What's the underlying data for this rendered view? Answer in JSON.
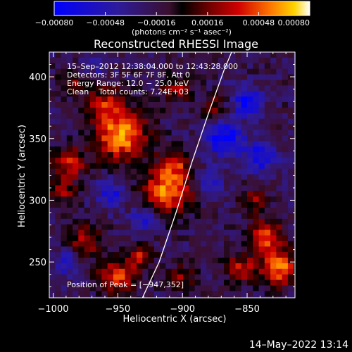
{
  "chart_data": {
    "type": "heatmap",
    "title": "Reconstructed RHESSI Image",
    "xlabel": "Heliocentric X (arcsec)",
    "ylabel": "Heliocentric Y (arcsec)",
    "xlim": [
      -1003,
      -813
    ],
    "ylim": [
      221,
      420
    ],
    "x_ticks": [
      -1000,
      -950,
      -900,
      -850
    ],
    "x_tick_labels": [
      "−1000",
      "−950",
      "−900",
      "−850"
    ],
    "y_ticks": [
      250,
      300,
      350,
      400
    ],
    "y_tick_labels": [
      "250",
      "300",
      "350",
      "400"
    ],
    "colorbar": {
      "range": [
        -0.0008,
        0.0008
      ],
      "ticks": [
        -0.0008,
        -0.00048,
        -0.00016,
        0.00016,
        0.00048,
        0.0008
      ],
      "tick_labels": [
        "−0.00080",
        "−0.00048",
        "−0.00016",
        "0.00016",
        "0.00048",
        "0.00080"
      ],
      "unit_label": "(photons cm⁻² s⁻¹ asec⁻²)"
    },
    "annotations": {
      "time": "15–Sep–2012 12:38:04.000 to 12:43:28.000",
      "detectors": "Detectors: 3F 5F 6F 7F 8F, Att 0",
      "energy": "Energy Range: 12.0 − 25.0 keV",
      "clean": "Clean    Total counts: 7.24E+03",
      "peak": "Position of Peak = [−947,352]"
    },
    "peak": [
      -947,
      352
    ],
    "limb_curve": {
      "points": [
        [
          -931,
          221
        ],
        [
          -918,
          250
        ],
        [
          -905,
          290
        ],
        [
          -893,
          330
        ],
        [
          -880,
          370
        ],
        [
          -868,
          405
        ],
        [
          -862,
          420
        ]
      ]
    },
    "hot_spots": [
      {
        "x": -947,
        "y": 352,
        "r": 14,
        "amp": 0.0008
      },
      {
        "x": -960,
        "y": 378,
        "r": 10,
        "amp": 0.00045
      },
      {
        "x": -912,
        "y": 308,
        "r": 13,
        "amp": 0.00075
      },
      {
        "x": -905,
        "y": 330,
        "r": 8,
        "amp": 0.00045
      },
      {
        "x": -988,
        "y": 330,
        "r": 9,
        "amp": 0.00055
      },
      {
        "x": -993,
        "y": 308,
        "r": 7,
        "amp": 0.0004
      },
      {
        "x": -975,
        "y": 268,
        "r": 9,
        "amp": 0.00045
      },
      {
        "x": -950,
        "y": 238,
        "r": 10,
        "amp": 0.0006
      },
      {
        "x": -932,
        "y": 255,
        "r": 7,
        "amp": 0.00045
      },
      {
        "x": -900,
        "y": 238,
        "r": 7,
        "amp": 0.0004
      },
      {
        "x": -835,
        "y": 270,
        "r": 9,
        "amp": 0.00065
      },
      {
        "x": -825,
        "y": 245,
        "r": 10,
        "amp": 0.0007
      },
      {
        "x": -855,
        "y": 245,
        "r": 8,
        "amp": 0.0005
      },
      {
        "x": -845,
        "y": 300,
        "r": 7,
        "amp": 0.0004
      },
      {
        "x": -905,
        "y": 390,
        "r": 8,
        "amp": 0.0004
      },
      {
        "x": -875,
        "y": 375,
        "r": 7,
        "amp": 0.00035
      },
      {
        "x": -985,
        "y": 395,
        "r": 7,
        "amp": 0.0003
      }
    ],
    "cold_spots": [
      {
        "x": -868,
        "y": 350,
        "r": 10,
        "amp": -0.0006
      },
      {
        "x": -850,
        "y": 380,
        "r": 8,
        "amp": -0.00055
      },
      {
        "x": -840,
        "y": 335,
        "r": 9,
        "amp": -0.0005
      },
      {
        "x": -880,
        "y": 315,
        "r": 7,
        "amp": -0.0004
      },
      {
        "x": -955,
        "y": 305,
        "r": 8,
        "amp": -0.00045
      },
      {
        "x": -930,
        "y": 285,
        "r": 7,
        "amp": -0.0004
      },
      {
        "x": -990,
        "y": 250,
        "r": 7,
        "amp": -0.0004
      },
      {
        "x": -965,
        "y": 410,
        "r": 6,
        "amp": -0.0003
      }
    ]
  },
  "footer": {
    "timestamp": "14–May–2022 13:14"
  }
}
